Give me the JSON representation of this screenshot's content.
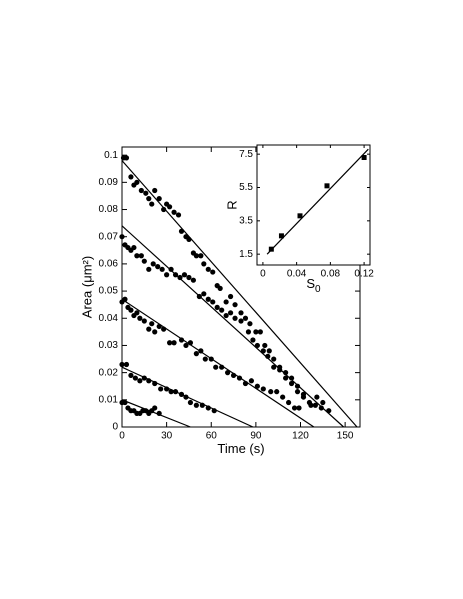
{
  "chart_data": [
    {
      "type": "scatter",
      "xlabel": "Time (s)",
      "ylabel": "Area (μm²)",
      "marker": "circle",
      "xlim": [
        0,
        160
      ],
      "ylim": [
        0,
        0.103
      ],
      "xticks": [
        0,
        30,
        60,
        90,
        120,
        150
      ],
      "yticks": [
        0,
        0.01,
        0.02,
        0.03,
        0.04,
        0.05,
        0.06,
        0.07,
        0.08,
        0.09,
        0.1
      ],
      "series": [
        {
          "color": "#000000",
          "x": [
            1,
            3,
            6,
            8,
            10,
            13,
            16,
            18,
            20,
            22,
            25,
            28,
            30,
            32,
            35,
            38,
            40,
            43,
            45,
            48,
            50,
            53,
            55,
            58,
            61,
            64,
            66,
            70,
            73,
            76,
            80,
            83,
            86,
            90,
            93,
            96,
            99,
            102,
            106,
            110,
            114,
            118,
            122,
            127,
            131,
            135,
            139
          ],
          "values": [
            0.099,
            0.099,
            0.092,
            0.089,
            0.09,
            0.087,
            0.086,
            0.084,
            0.082,
            0.087,
            0.084,
            0.08,
            0.082,
            0.081,
            0.079,
            0.078,
            0.072,
            0.07,
            0.069,
            0.064,
            0.063,
            0.063,
            0.06,
            0.058,
            0.057,
            0.052,
            0.051,
            0.046,
            0.048,
            0.045,
            0.042,
            0.04,
            0.038,
            0.035,
            0.035,
            0.03,
            0.028,
            0.025,
            0.022,
            0.02,
            0.018,
            0.015,
            0.012,
            0.008,
            0.011,
            0.009,
            0.006
          ]
        },
        {
          "color": "#000000",
          "x": [
            0,
            2,
            4,
            6,
            8,
            10,
            13,
            15,
            18,
            21,
            24,
            27,
            30,
            33,
            36,
            39,
            42,
            45,
            48,
            52,
            55,
            58,
            61,
            64,
            67,
            70,
            73,
            76,
            80,
            85,
            88,
            91,
            95,
            98,
            102,
            106,
            110,
            114,
            118,
            122,
            126,
            130,
            134
          ],
          "values": [
            0.07,
            0.067,
            0.066,
            0.065,
            0.066,
            0.063,
            0.063,
            0.061,
            0.058,
            0.06,
            0.059,
            0.058,
            0.056,
            0.058,
            0.056,
            0.055,
            0.056,
            0.055,
            0.054,
            0.048,
            0.049,
            0.047,
            0.046,
            0.044,
            0.043,
            0.041,
            0.042,
            0.04,
            0.039,
            0.035,
            0.032,
            0.03,
            0.028,
            0.026,
            0.022,
            0.021,
            0.018,
            0.016,
            0.013,
            0.011,
            0.009,
            0.008,
            0.007
          ]
        },
        {
          "color": "#000000",
          "x": [
            0,
            2,
            4,
            6,
            8,
            10,
            12,
            15,
            18,
            20,
            22,
            25,
            28,
            32,
            35,
            40,
            43,
            46,
            50,
            53,
            56,
            60,
            63,
            67,
            71,
            75,
            79,
            83,
            87,
            91,
            95,
            100,
            104,
            108,
            112,
            116,
            119
          ],
          "values": [
            0.046,
            0.047,
            0.044,
            0.043,
            0.041,
            0.042,
            0.04,
            0.039,
            0.036,
            0.038,
            0.035,
            0.037,
            0.036,
            0.031,
            0.031,
            0.032,
            0.03,
            0.031,
            0.027,
            0.028,
            0.025,
            0.025,
            0.022,
            0.022,
            0.02,
            0.019,
            0.018,
            0.016,
            0.017,
            0.015,
            0.014,
            0.013,
            0.013,
            0.011,
            0.009,
            0.007,
            0.007
          ]
        },
        {
          "color": "#000000",
          "x": [
            0,
            3,
            6,
            9,
            12,
            15,
            18,
            22,
            26,
            30,
            33,
            36,
            40,
            43,
            46,
            50,
            54,
            58,
            62
          ],
          "values": [
            0.023,
            0.023,
            0.019,
            0.018,
            0.017,
            0.018,
            0.017,
            0.016,
            0.014,
            0.014,
            0.013,
            0.013,
            0.012,
            0.011,
            0.009,
            0.008,
            0.008,
            0.007,
            0.006
          ]
        },
        {
          "color": "#000000",
          "x": [
            0,
            2,
            4,
            6,
            8,
            10,
            12,
            14,
            16,
            18,
            20,
            22,
            25
          ],
          "values": [
            0.009,
            0.009,
            0.007,
            0.006,
            0.006,
            0.005,
            0.005,
            0.006,
            0.006,
            0.005,
            0.006,
            0.007,
            0.005
          ]
        }
      ],
      "lines": [
        {
          "x": [
            0,
            158
          ],
          "values": [
            0.098,
            0
          ]
        },
        {
          "x": [
            0,
            149
          ],
          "values": [
            0.074,
            0
          ]
        },
        {
          "x": [
            0,
            129
          ],
          "values": [
            0.047,
            0
          ]
        },
        {
          "x": [
            0,
            88
          ],
          "values": [
            0.022,
            0
          ]
        },
        {
          "x": [
            0,
            46
          ],
          "values": [
            0.01,
            0
          ]
        }
      ]
    },
    {
      "type": "scatter",
      "xlabel": "S",
      "xlabel_subscript": "0",
      "ylabel": "R",
      "marker": "square",
      "xlim": [
        -0.007,
        0.127
      ],
      "ylim": [
        0.85,
        8.05
      ],
      "xticks": [
        0,
        0.04,
        0.08,
        0.12
      ],
      "yticks": [
        1.5,
        3.5,
        5.5,
        7.5
      ],
      "series": [
        {
          "color": "#000000",
          "x": [
            0.01,
            0.022,
            0.044,
            0.076,
            0.12
          ],
          "values": [
            1.8,
            2.6,
            3.8,
            5.6,
            7.3
          ]
        }
      ],
      "lines": [
        {
          "x": [
            0.005,
            0.125
          ],
          "values": [
            1.5,
            7.8
          ]
        }
      ]
    }
  ]
}
